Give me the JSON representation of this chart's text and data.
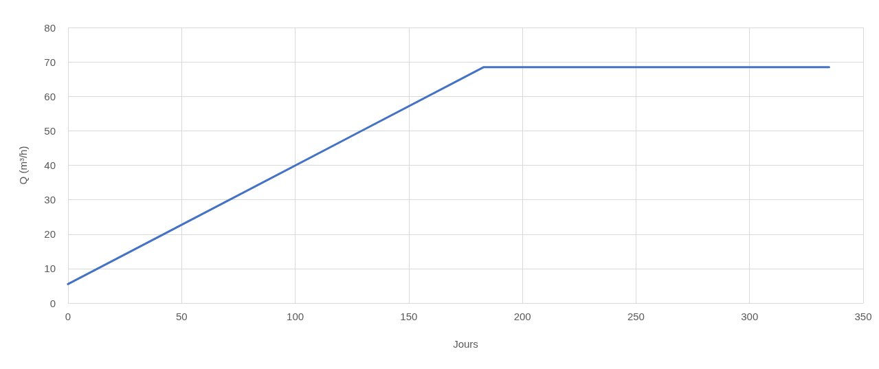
{
  "chart_data": {
    "type": "line",
    "xlabel": "Jours",
    "ylabel": "Q (m³/h)",
    "x": [
      0,
      183,
      335
    ],
    "series": [
      {
        "color": "#4472c4",
        "values": [
          5.5,
          68.5,
          68.5
        ]
      }
    ],
    "xlim": [
      0,
      350
    ],
    "xticks": [
      0,
      50,
      100,
      150,
      200,
      250,
      300,
      350
    ],
    "ylim": [
      0,
      80
    ],
    "yticks": [
      0,
      10,
      20,
      30,
      40,
      50,
      60,
      70,
      80
    ],
    "grid": true,
    "marker": "none",
    "line_style": "solid"
  }
}
